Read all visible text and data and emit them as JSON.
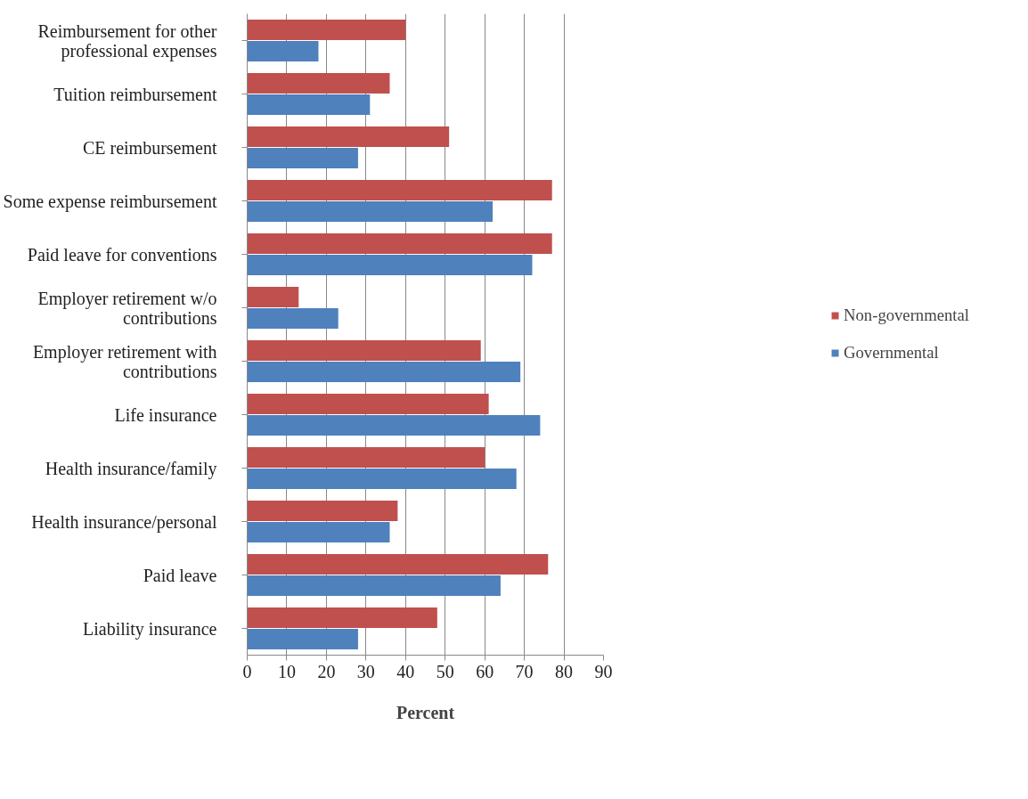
{
  "chart_data": {
    "type": "bar",
    "orientation": "horizontal",
    "xlabel": "Percent",
    "categories": [
      "Reimbursement for other professional expenses",
      "Tuition reimbursement",
      "CE reimbursement",
      "Some expense reimbursement",
      "Paid leave for conventions",
      "Employer retirement w/o contributions",
      "Employer retirement with contributions",
      "Life insurance",
      "Health insurance/family",
      "Health insurance/personal",
      "Paid leave",
      "Liability insurance"
    ],
    "series": [
      {
        "name": "Non-governmental",
        "color": "#c0504d",
        "values": [
          40,
          36,
          51,
          77,
          77,
          13,
          59,
          61,
          60,
          38,
          76,
          48
        ]
      },
      {
        "name": "Governmental",
        "color": "#4f81bd",
        "values": [
          18,
          31,
          28,
          62,
          72,
          23,
          69,
          74,
          68,
          36,
          64,
          28
        ]
      }
    ],
    "xlim": [
      0,
      90
    ],
    "xticks": [
      0,
      10,
      20,
      30,
      40,
      50,
      60,
      70,
      80,
      90
    ],
    "grid": "x",
    "legend": "right"
  }
}
